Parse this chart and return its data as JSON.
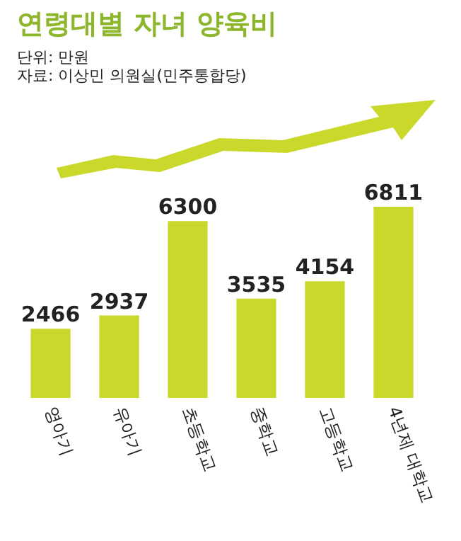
{
  "chart_data": {
    "type": "bar",
    "title": "연령대별 자녀 양육비",
    "subtitle": "단위: 만원",
    "annotations": [
      "자료: 이상민 의원실(민주통합당)"
    ],
    "categories": [
      "영아기",
      "유아기",
      "초등학교",
      "중학교",
      "고등학교",
      "4년제 대학교"
    ],
    "values": [
      2466,
      2937,
      6300,
      3535,
      4154,
      6811
    ],
    "color": "#c9d82b",
    "data_labels": true
  }
}
